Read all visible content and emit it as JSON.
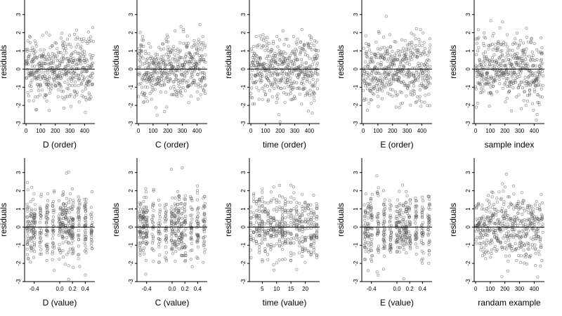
{
  "figure": {
    "title": ""
  },
  "chart_data": [
    {
      "type": "scatter",
      "xlabel": "D (order)",
      "ylabel": "residuals",
      "xlim": [
        -10,
        470
      ],
      "ylim": [
        -3,
        3.8
      ],
      "xticks": [
        0,
        100,
        200,
        300,
        400
      ],
      "yticks": [
        -3,
        -2,
        -1,
        0,
        1,
        2,
        3
      ],
      "refline_y": 0,
      "points": "scatter of 460 residuals vs order index; fan of residuals mostly within [-2, 2]"
    },
    {
      "type": "scatter",
      "xlabel": "C (order)",
      "ylabel": "residuals",
      "xlim": [
        -10,
        470
      ],
      "ylim": [
        -3,
        3.8
      ],
      "xticks": [
        0,
        100,
        200,
        300,
        400
      ],
      "yticks": [
        -3,
        -2,
        -1,
        0,
        1,
        2,
        3
      ],
      "refline_y": 0
    },
    {
      "type": "scatter",
      "xlabel": "time (order)",
      "ylabel": "residuals",
      "xlim": [
        -10,
        470
      ],
      "ylim": [
        -3,
        3.8
      ],
      "xticks": [
        0,
        100,
        200,
        300,
        400
      ],
      "yticks": [
        -3,
        -2,
        -1,
        0,
        1,
        2,
        3
      ],
      "refline_y": 0
    },
    {
      "type": "scatter",
      "xlabel": "E (order)",
      "ylabel": "residuals",
      "xlim": [
        -10,
        470
      ],
      "ylim": [
        -3,
        3.8
      ],
      "xticks": [
        0,
        100,
        200,
        300,
        400
      ],
      "yticks": [
        -3,
        -2,
        -1,
        0,
        1,
        2,
        3
      ],
      "refline_y": 0
    },
    {
      "type": "scatter",
      "xlabel": "sample index",
      "ylabel": "residuals",
      "xlim": [
        -10,
        470
      ],
      "ylim": [
        -3,
        3.8
      ],
      "xticks": [
        0,
        100,
        200,
        300,
        400
      ],
      "yticks": [
        -3,
        -2,
        -1,
        0,
        1,
        2,
        3
      ],
      "refline_y": 0
    },
    {
      "type": "scatter",
      "xlabel": "D (value)",
      "ylabel": "residuals",
      "xlim": [
        -0.55,
        0.55
      ],
      "ylim": [
        -3,
        3.8
      ],
      "xticks": [
        -0.4,
        0.0,
        0.2,
        0.4
      ],
      "xtick_labels": [
        "-0.4",
        "0.0",
        "0.2",
        "0.4"
      ],
      "yticks": [
        -3,
        -2,
        -1,
        0,
        1,
        2,
        3
      ],
      "refline_y": 0
    },
    {
      "type": "scatter",
      "xlabel": "C (value)",
      "ylabel": "residuals",
      "xlim": [
        -0.55,
        0.55
      ],
      "ylim": [
        -3,
        3.8
      ],
      "xticks": [
        -0.4,
        0.0,
        0.2,
        0.4
      ],
      "xtick_labels": [
        "-0.4",
        "0.0",
        "0.2",
        "0.4"
      ],
      "yticks": [
        -3,
        -2,
        -1,
        0,
        1,
        2,
        3
      ],
      "refline_y": 0
    },
    {
      "type": "scatter",
      "xlabel": "time (value)",
      "ylabel": "residuals",
      "xlim": [
        0.5,
        25
      ],
      "ylim": [
        -3,
        3.8
      ],
      "xticks": [
        5,
        10,
        15,
        20
      ],
      "yticks": [
        -3,
        -2,
        -1,
        0,
        1,
        2,
        3
      ],
      "refline_y": 0
    },
    {
      "type": "scatter",
      "xlabel": "E (value)",
      "ylabel": "residuals",
      "xlim": [
        -0.55,
        0.55
      ],
      "ylim": [
        -3,
        3.8
      ],
      "xticks": [
        -0.4,
        0.0,
        0.2,
        0.4
      ],
      "xtick_labels": [
        "-0.4",
        "0.0",
        "0.2",
        "0.4"
      ],
      "yticks": [
        -3,
        -2,
        -1,
        0,
        1,
        2,
        3
      ],
      "refline_y": 0
    },
    {
      "type": "scatter",
      "xlabel": "randam example",
      "ylabel": "residuals",
      "xlim": [
        -10,
        470
      ],
      "ylim": [
        -3,
        3.8
      ],
      "xticks": [
        0,
        100,
        200,
        300,
        400
      ],
      "yticks": [
        -3,
        -2,
        -1,
        0,
        1,
        2,
        3
      ],
      "refline_y": 0
    }
  ],
  "colors": {
    "points": "#555555",
    "axes": "#000000",
    "background": "#ffffff"
  }
}
